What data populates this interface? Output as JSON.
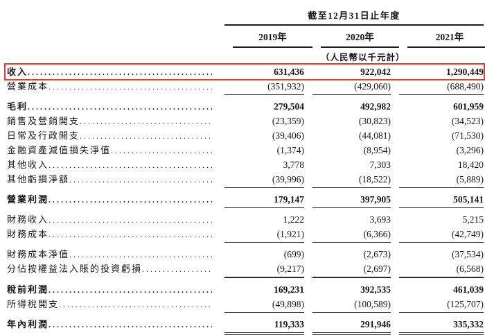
{
  "header": {
    "period_title": "截至12月31日止年度",
    "unit_note": "（人民幣以千元計）",
    "years": [
      "2019年",
      "2020年",
      "2021年"
    ]
  },
  "highlight": {
    "color": "#e2392c",
    "target_row": "收入"
  },
  "table": {
    "rows": [
      {
        "label": "收入",
        "values": [
          "631,436",
          "922,042",
          "1,290,449"
        ]
      },
      {
        "label": "營業成本",
        "values": [
          "(351,932)",
          "(429,060)",
          "(688,490)"
        ]
      },
      {
        "label": "毛利",
        "values": [
          "279,504",
          "492,982",
          "601,959"
        ]
      },
      {
        "label": "銷售及營銷開支",
        "values": [
          "(23,359)",
          "(30,823)",
          "(34,523)"
        ]
      },
      {
        "label": "日常及行政開支",
        "values": [
          "(39,406)",
          "(44,081)",
          "(71,530)"
        ]
      },
      {
        "label": "金融資產減值損失淨值",
        "values": [
          "(1,374)",
          "(8,954)",
          "(3,296)"
        ]
      },
      {
        "label": "其他收入",
        "values": [
          "3,778",
          "7,303",
          "18,420"
        ]
      },
      {
        "label": "其他虧損淨額",
        "values": [
          "(39,996)",
          "(18,522)",
          "(5,889)"
        ]
      },
      {
        "label": "營業利潤",
        "values": [
          "179,147",
          "397,905",
          "505,141"
        ]
      },
      {
        "label": "財務收入",
        "values": [
          "1,222",
          "3,693",
          "5,215"
        ]
      },
      {
        "label": "財務成本",
        "values": [
          "(1,921)",
          "(6,366)",
          "(42,749)"
        ]
      },
      {
        "label": "財務成本淨值",
        "values": [
          "(699)",
          "(2,673)",
          "(37,534)"
        ]
      },
      {
        "label": "分佔按權益法入賬的投資虧損",
        "values": [
          "(9,217)",
          "(2,697)",
          "(6,568)"
        ]
      },
      {
        "label": "稅前利潤",
        "values": [
          "169,231",
          "392,535",
          "461,039"
        ]
      },
      {
        "label": "所得稅開支",
        "values": [
          "(49,898)",
          "(100,589)",
          "(125,707)"
        ]
      },
      {
        "label": "年內利潤",
        "values": [
          "119,333",
          "291,946",
          "335,332"
        ]
      }
    ]
  }
}
